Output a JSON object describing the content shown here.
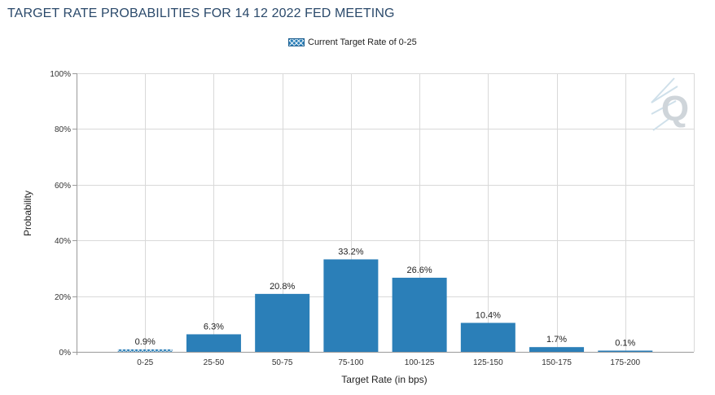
{
  "chart_data": {
    "type": "bar",
    "title": "TARGET RATE PROBABILITIES FOR 14 12 2022 FED MEETING",
    "xlabel": "Target Rate (in bps)",
    "ylabel": "Probability",
    "legend": {
      "placement": "top-center",
      "label": "Current Target Rate of 0-25"
    },
    "categories": [
      "0-25",
      "25-50",
      "50-75",
      "75-100",
      "100-125",
      "125-150",
      "150-175",
      "175-200"
    ],
    "values": [
      0.9,
      6.3,
      20.8,
      33.2,
      26.6,
      10.4,
      1.7,
      0.1
    ],
    "data_labels": [
      "0.9%",
      "6.3%",
      "20.8%",
      "33.2%",
      "26.6%",
      "10.4%",
      "1.7%",
      "0.1%"
    ],
    "highlighted_category": "0-25",
    "ylim": [
      0,
      100
    ],
    "yticks": [
      0,
      20,
      40,
      60,
      80,
      100
    ],
    "ytick_labels": [
      "0%",
      "20%",
      "40%",
      "60%",
      "80%",
      "100%"
    ],
    "grid": true,
    "colors": {
      "bar": "#2b7fb8",
      "highlight_pattern": "#2b7fb8",
      "grid": "#d9d9d9",
      "axis": "#9a9a9a",
      "title": "#2b4a6b",
      "watermark": "#cfd8df"
    }
  },
  "watermark_icon": "q-logo-icon"
}
